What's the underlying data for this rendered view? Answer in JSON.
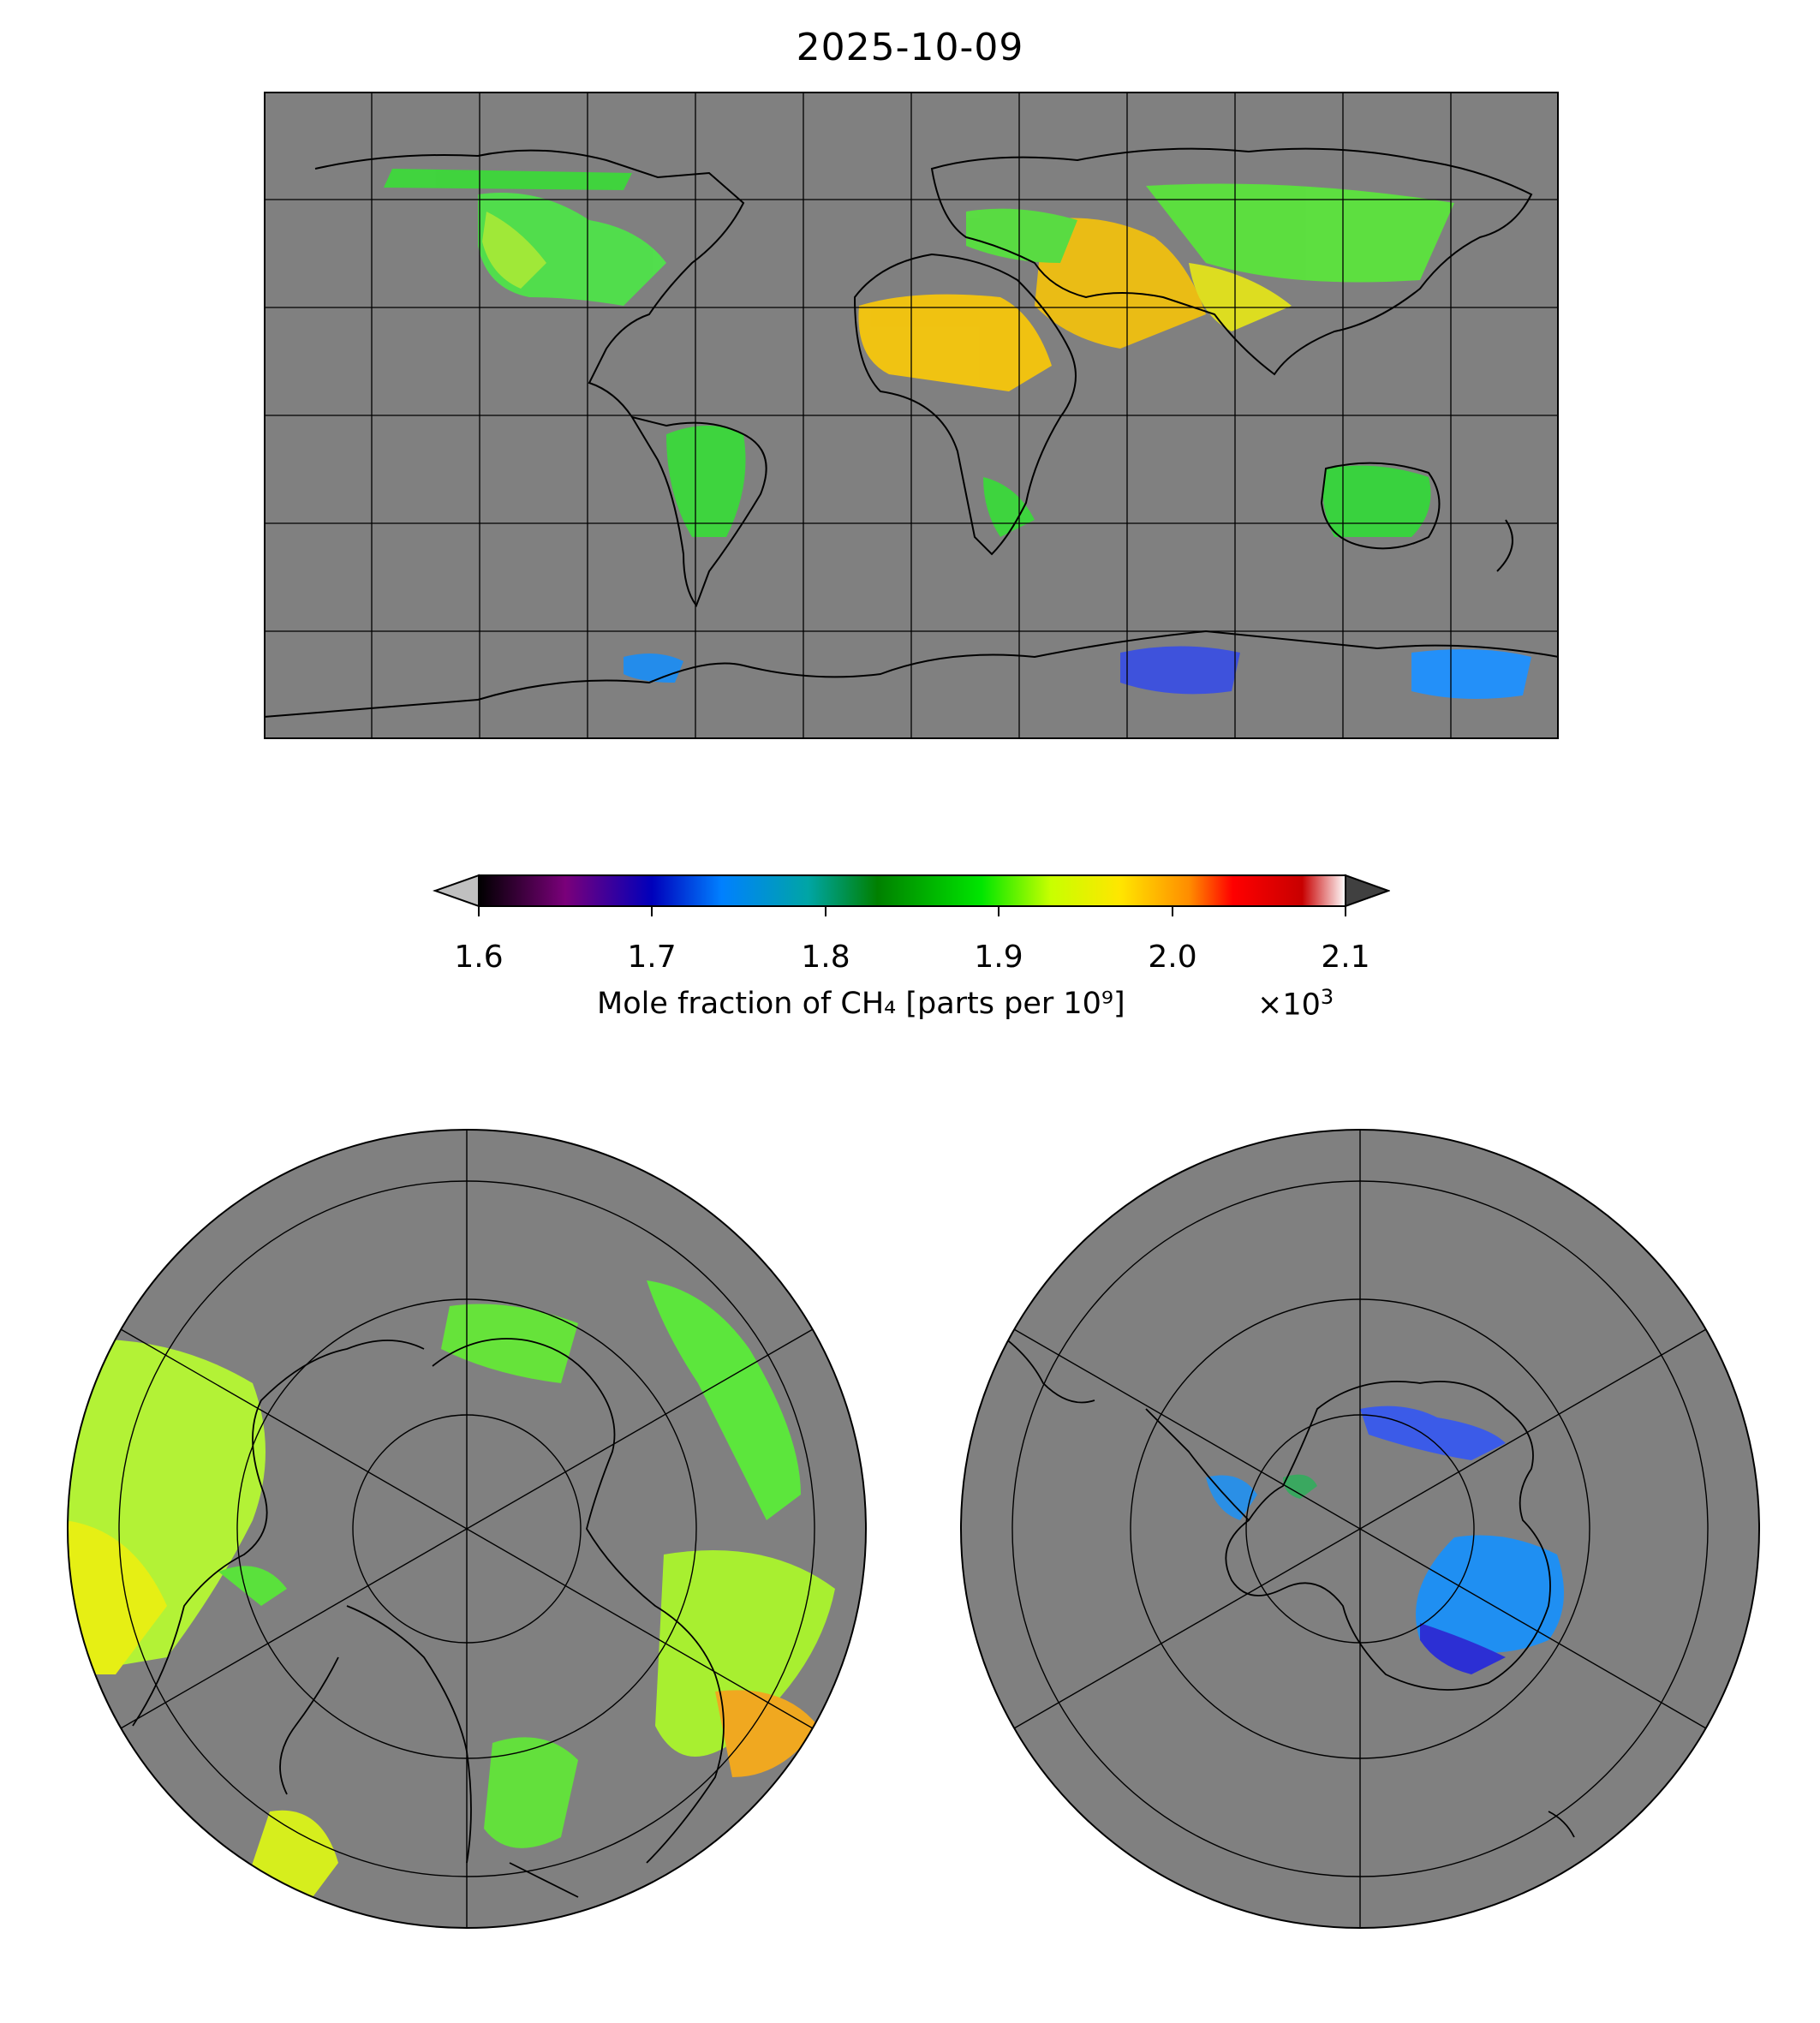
{
  "title": "2025-10-09",
  "colorbar": {
    "ticks": [
      "1.6",
      "1.7",
      "1.8",
      "1.9",
      "2.0",
      "2.1"
    ],
    "label": "Mole fraction of CH₄ [parts per 10⁹]",
    "multiplier_prefix": "×10",
    "multiplier_exponent": "3",
    "colors": [
      "#000000",
      "#7a007a",
      "#0000bb",
      "#0080ff",
      "#00a5a5",
      "#008000",
      "#00e600",
      "#c8ff00",
      "#ffe600",
      "#ff8c00",
      "#ff0000",
      "#c80000",
      "#ffffff"
    ],
    "under_color": "#c0c0c0",
    "over_color": "#404040"
  },
  "map": {
    "background_color": "#808080",
    "grid_color": "#000000",
    "projections": [
      "plate-carree",
      "north-polar-stereographic",
      "south-polar-stereographic"
    ]
  }
}
